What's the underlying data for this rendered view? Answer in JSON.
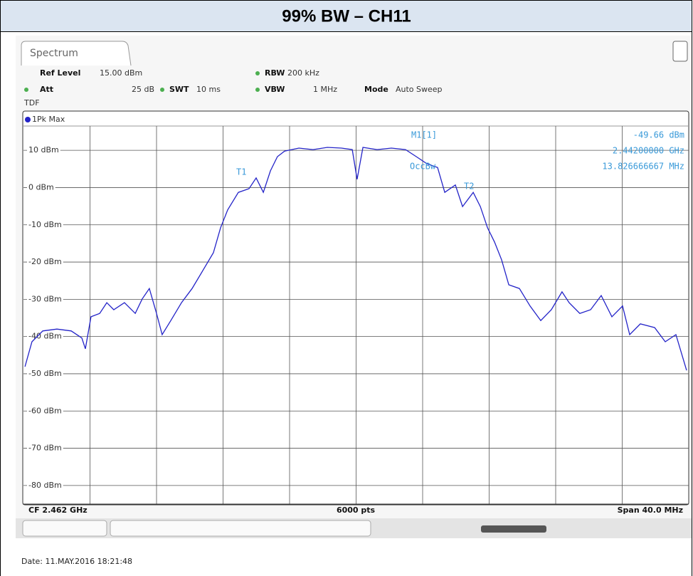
{
  "chart_data": {
    "type": "line",
    "title": "99% BW – CH11",
    "tab": "Spectrum",
    "settings": {
      "ref_level_label": "Ref Level",
      "ref_level": "15.00 dBm",
      "att_label": "Att",
      "att": "25 dB",
      "swt_label": "SWT",
      "swt": "10 ms",
      "rbw_label": "RBW",
      "rbw": "200 kHz",
      "vbw_label": "VBW",
      "vbw": "1 MHz",
      "mode_label": "Mode",
      "mode": "Auto Sweep",
      "tdf": "TDF",
      "trace": "1Pk Max"
    },
    "marker": {
      "name": "M1[1]",
      "level": "-49.66 dBm",
      "freq": "2.44200000 GHz",
      "bw": "13.826666667 MHz",
      "t1": "T1",
      "t2": "T2",
      "occ": "OccBw"
    },
    "footer": {
      "cf": "CF 2.462 GHz",
      "pts": "6000 pts",
      "span": "Span 40.0 MHz"
    },
    "date": "Date: 11.MAY.2016  18:21:48",
    "x": [
      2442.09,
      2442.51,
      2443.16,
      2444.01,
      2444.87,
      2445.51,
      2445.72,
      2446.06,
      2446.58,
      2447.01,
      2447.43,
      2448.07,
      2448.72,
      2449.14,
      2449.57,
      2450.0,
      2450.34,
      2450.86,
      2451.5,
      2452.14,
      2452.78,
      2453.42,
      2453.85,
      2454.28,
      2454.92,
      2455.56,
      2455.99,
      2456.42,
      2456.85,
      2457.27,
      2457.7,
      2458.56,
      2459.41,
      2460.27,
      2461.12,
      2461.77,
      2462.06,
      2462.41,
      2463.26,
      2464.12,
      2464.97,
      2465.62,
      2466.26,
      2466.9,
      2467.33,
      2467.97,
      2468.4,
      2469.04,
      2469.47,
      2469.9,
      2470.32,
      2470.75,
      2471.18,
      2471.82,
      2472.46,
      2473.1,
      2473.74,
      2474.38,
      2474.81,
      2475.45,
      2476.1,
      2476.74,
      2477.38,
      2478.02,
      2478.45,
      2479.09,
      2479.95,
      2480.59,
      2481.23,
      2481.87
    ],
    "series": [
      {
        "name": "1Pk Max",
        "color": "#2323c8",
        "values": [
          -48.1,
          -41.4,
          -38.5,
          -38,
          -38.5,
          -40.4,
          -43.3,
          -34.7,
          -33.8,
          -30.9,
          -32.8,
          -30.9,
          -33.8,
          -29.9,
          -27.1,
          -33.8,
          -39.5,
          -35.7,
          -30.9,
          -27.1,
          -22.3,
          -17.5,
          -10.8,
          -6,
          -1.3,
          -0.3,
          2.6,
          -1.3,
          4.5,
          8.3,
          9.8,
          10.6,
          10.2,
          10.8,
          10.6,
          10.2,
          2.2,
          10.8,
          10.2,
          10.6,
          10.2,
          8.3,
          6.4,
          5.4,
          -1.3,
          0.7,
          -5.1,
          -1.3,
          -5.1,
          -10.8,
          -14.6,
          -19.4,
          -26.1,
          -27.1,
          -31.8,
          -35.7,
          -32.8,
          -28,
          -30.9,
          -33.8,
          -32.8,
          -29,
          -34.7,
          -31.8,
          -39.5,
          -36.6,
          -37.6,
          -41.4,
          -39.5,
          -49.1
        ]
      }
    ],
    "xlim": [
      2442,
      2482
    ],
    "ylim": [
      -85,
      15
    ],
    "yticks": [
      {
        "value": 10,
        "label": "10 dBm"
      },
      {
        "value": 0,
        "label": "0 dBm"
      },
      {
        "value": -10,
        "label": "-10 dBm"
      },
      {
        "value": -20,
        "label": "-20 dBm"
      },
      {
        "value": -30,
        "label": "-30 dBm"
      },
      {
        "value": -40,
        "label": "-40 dBm"
      },
      {
        "value": -50,
        "label": "-50 dBm"
      },
      {
        "value": -60,
        "label": "-60 dBm"
      },
      {
        "value": -70,
        "label": "-70 dBm"
      },
      {
        "value": -80,
        "label": "-80 dBm"
      }
    ],
    "xgrid_divisions": 10,
    "grid": true
  }
}
